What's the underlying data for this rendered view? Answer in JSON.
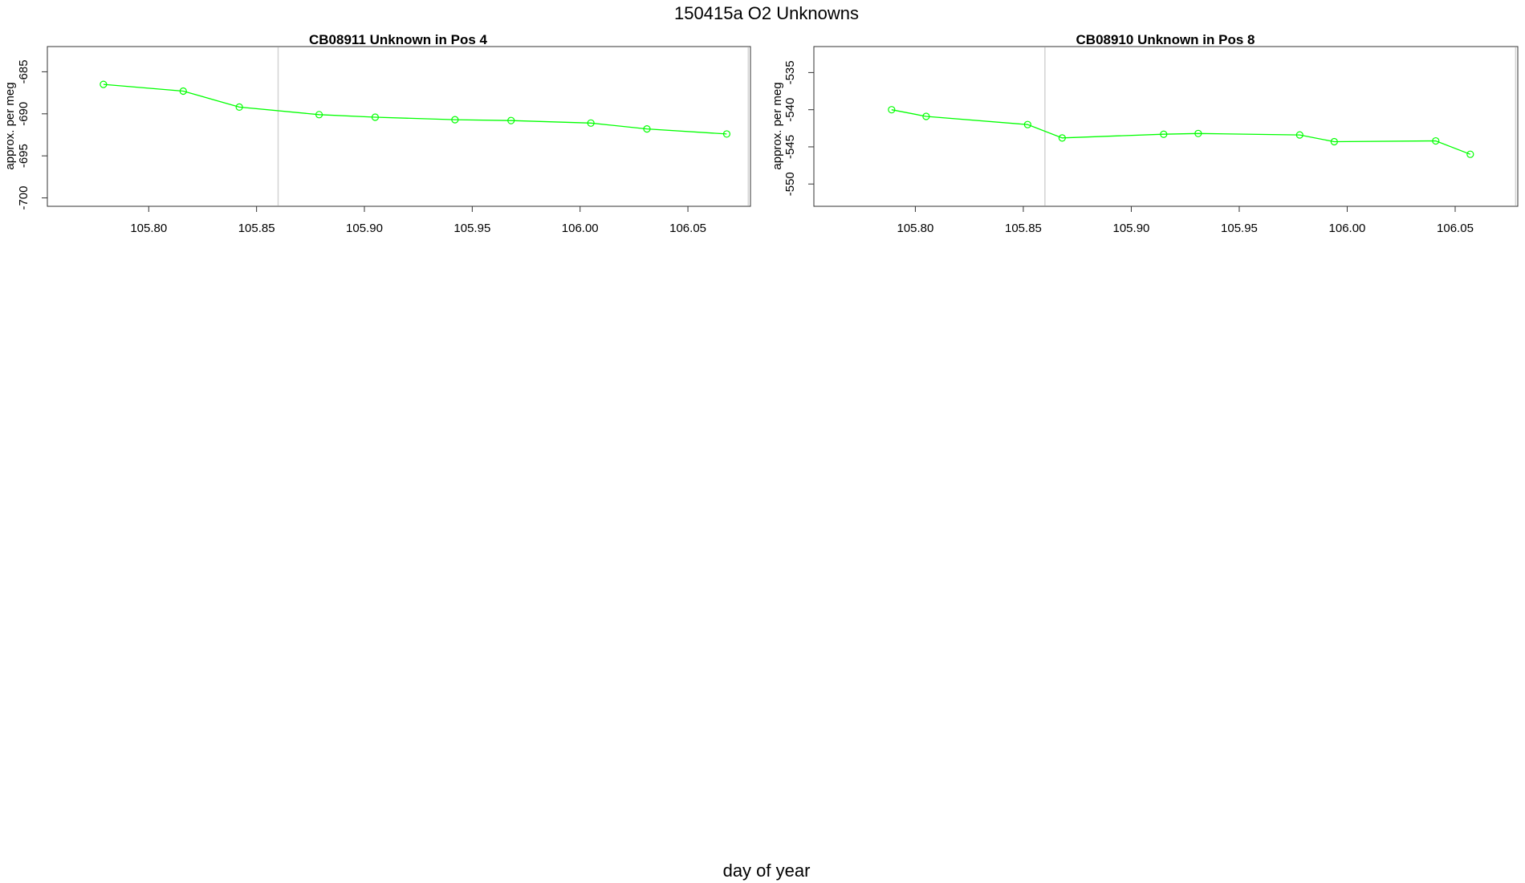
{
  "figure": {
    "title": "150415a  O2 Unknowns",
    "xlabel": "day of year"
  },
  "colors": {
    "series": "#00ff00",
    "frame": "#333333",
    "vline": "#d3d3d3",
    "text": "#000000"
  },
  "chart_data": [
    {
      "type": "line",
      "title": "CB08911    Unknown in Pos 4",
      "xlabel": "",
      "ylabel": "approx. per meg",
      "xlim": [
        105.753,
        106.079
      ],
      "ylim": [
        -701.0,
        -682.0
      ],
      "xticks": [
        105.8,
        105.85,
        105.9,
        105.95,
        106.0,
        106.05
      ],
      "xtick_labels": [
        "105.80",
        "105.85",
        "105.90",
        "105.95",
        "106.00",
        "106.05"
      ],
      "yticks": [
        -685,
        -690,
        -695,
        -700
      ],
      "ytick_labels": [
        "-685",
        "-690",
        "-695",
        "-700"
      ],
      "vlines": [
        105.86,
        106.078
      ],
      "grid": false,
      "series": [
        {
          "x": [
            105.779,
            105.816,
            105.842,
            105.879,
            105.905,
            105.942,
            105.968,
            106.005,
            106.031,
            106.068
          ],
          "y": [
            -686.5,
            -687.3,
            -689.2,
            -690.1,
            -690.4,
            -690.7,
            -690.8,
            -691.1,
            -691.8,
            -692.4
          ]
        }
      ]
    },
    {
      "type": "line",
      "title": "CB08910    Unknown in Pos 8",
      "xlabel": "",
      "ylabel": "approx. per meg",
      "xlim": [
        105.753,
        106.079
      ],
      "ylim": [
        -553.0,
        -531.5
      ],
      "xticks": [
        105.8,
        105.85,
        105.9,
        105.95,
        106.0,
        106.05
      ],
      "xtick_labels": [
        "105.80",
        "105.85",
        "105.90",
        "105.95",
        "106.00",
        "106.05"
      ],
      "yticks": [
        -535,
        -540,
        -545,
        -550
      ],
      "ytick_labels": [
        "-535",
        "-540",
        "-545",
        "-550"
      ],
      "vlines": [
        105.86,
        106.078
      ],
      "grid": false,
      "series": [
        {
          "x": [
            105.789,
            105.805,
            105.852,
            105.868,
            105.915,
            105.931,
            105.978,
            105.994,
            106.041,
            106.057
          ],
          "y": [
            -540.0,
            -540.9,
            -542.0,
            -543.8,
            -543.3,
            -543.2,
            -543.4,
            -544.3,
            -544.2,
            -546.0
          ]
        }
      ]
    }
  ]
}
